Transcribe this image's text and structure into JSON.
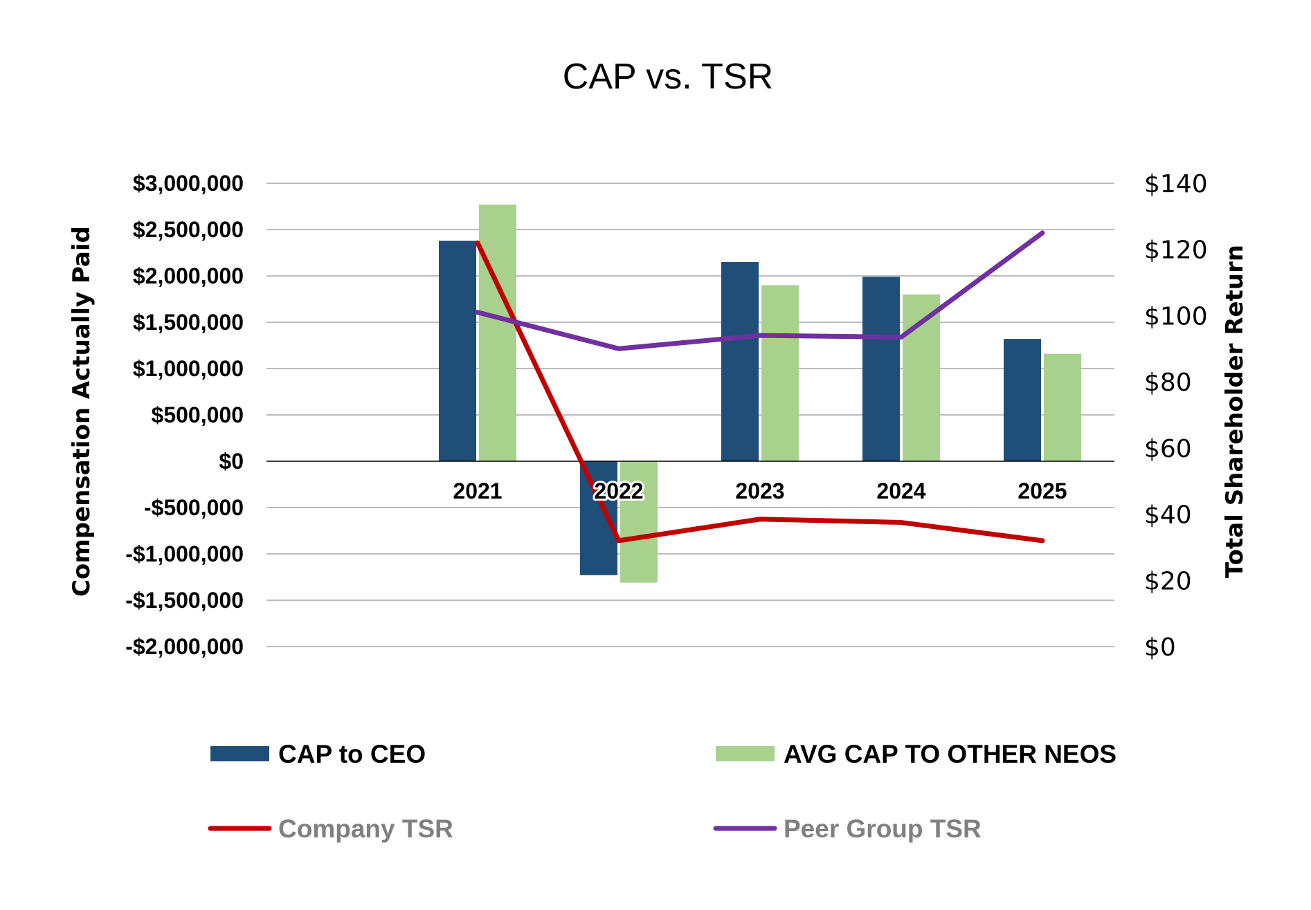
{
  "chart_data": {
    "type": "bar",
    "title": "CAP vs. TSR",
    "categories": [
      "2021",
      "2022",
      "2023",
      "2024",
      "2025"
    ],
    "y_left": {
      "label": "Compensation Actually Paid",
      "ylim": [
        -2000000,
        3000000
      ],
      "ticks": [
        3000000,
        2500000,
        2000000,
        1500000,
        1000000,
        500000,
        0,
        -500000,
        -1000000,
        -1500000,
        -2000000
      ],
      "tick_labels": [
        "$3,000,000",
        "$2,500,000",
        "$2,000,000",
        "$1,500,000",
        "$1,000,000",
        "$500,000",
        "$0",
        "-$500,000",
        "-$1,000,000",
        "-$1,500,000",
        "-$2,000,000"
      ]
    },
    "y_right": {
      "label": "Total Shareholder Return",
      "ylim": [
        0,
        140
      ],
      "ticks": [
        140,
        120,
        100,
        80,
        60,
        40,
        20,
        0
      ],
      "tick_labels": [
        "$140",
        "$120",
        "$100",
        "$80",
        "$60",
        "$40",
        "$20",
        "$0"
      ]
    },
    "bar_series": [
      {
        "name": "CAP to CEO",
        "color": "#1f4e79",
        "axis": "left",
        "values": [
          2380000,
          -1230000,
          2150000,
          1990000,
          1320000
        ]
      },
      {
        "name": "AVG CAP TO OTHER NEOS",
        "color": "#a9d18e",
        "axis": "left",
        "values": [
          2770000,
          -1310000,
          1900000,
          1800000,
          1160000
        ]
      }
    ],
    "line_series": [
      {
        "name": "Company TSR",
        "color": "#c00000",
        "axis": "right",
        "values": [
          122,
          32,
          38.5,
          37.5,
          32
        ]
      },
      {
        "name": "Peer Group TSR",
        "color": "#7030a0",
        "axis": "right",
        "values": [
          101,
          90,
          94,
          93.5,
          125
        ]
      }
    ],
    "grid": true,
    "legend_position": "bottom"
  }
}
